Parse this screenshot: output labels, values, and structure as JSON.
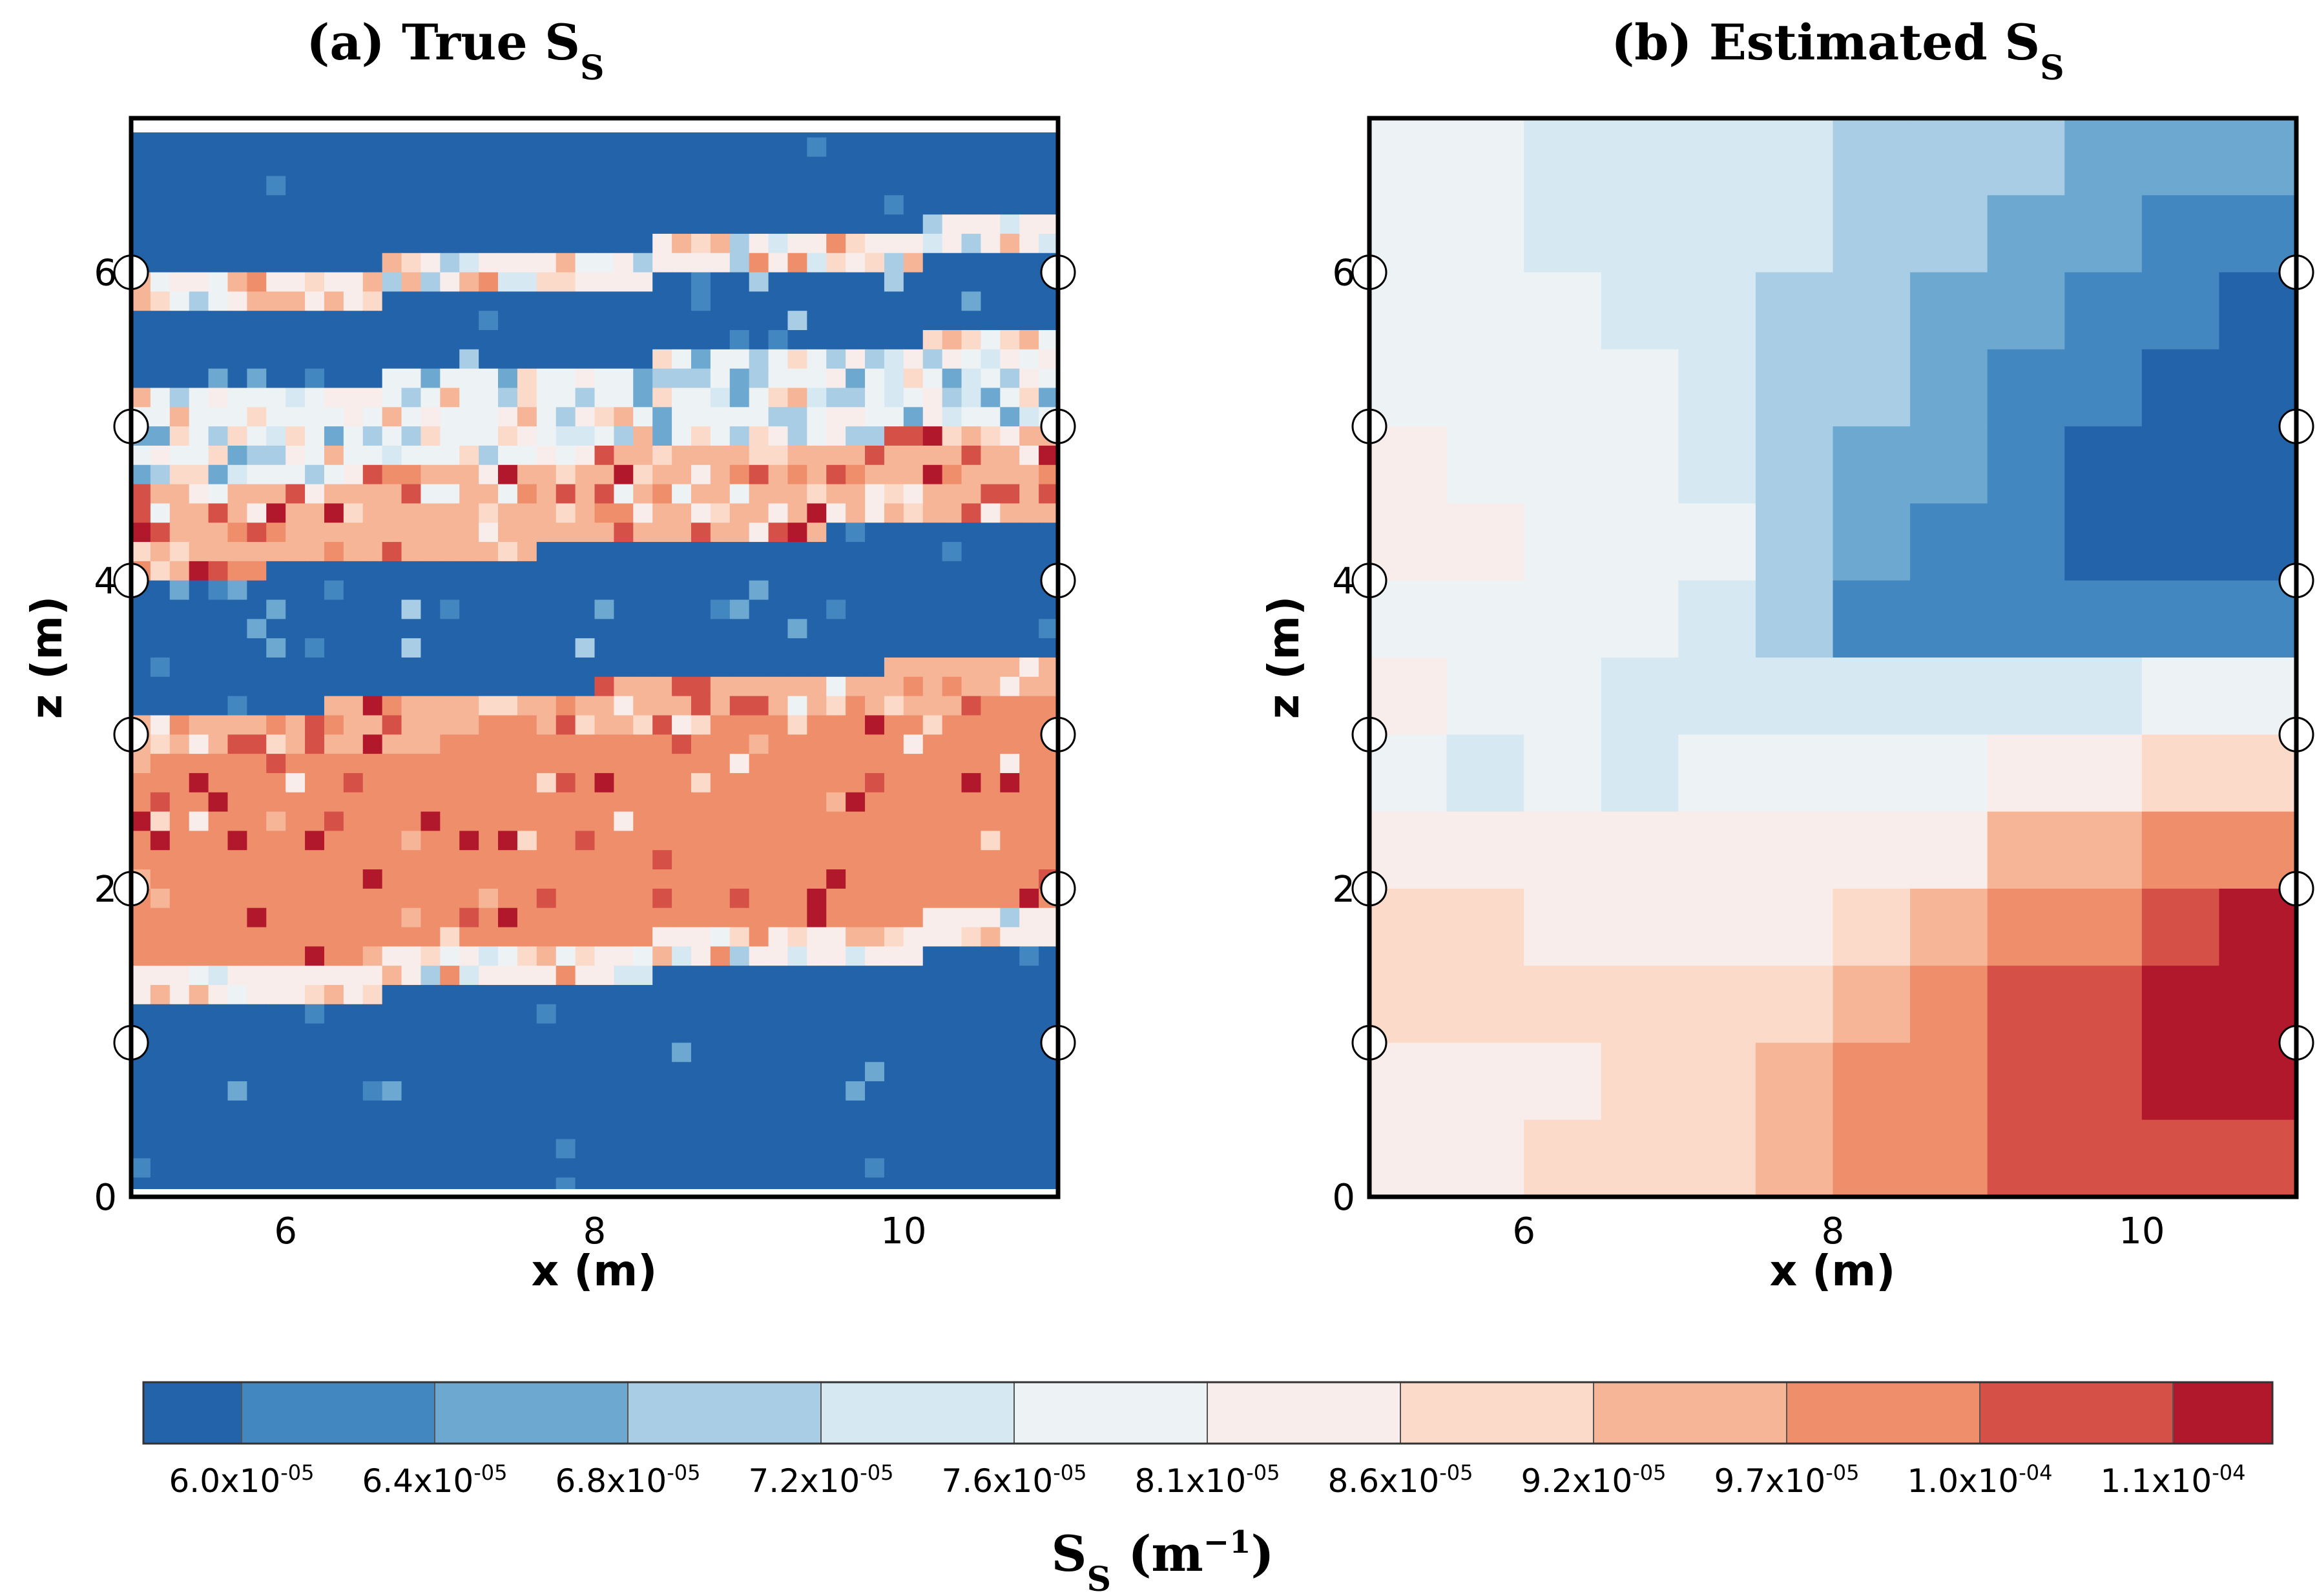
{
  "chart_data": {
    "type": "heatmap",
    "panels": [
      {
        "id": "a",
        "title_main": "(a) True S",
        "title_sub": "S",
        "xlabel": "x (m)",
        "ylabel": "z (m)",
        "xlim": [
          5,
          11
        ],
        "ylim": [
          0,
          7
        ],
        "xticks": [
          6,
          8,
          10
        ],
        "yticks": [
          0,
          2,
          4,
          6
        ],
        "well_markers_z": [
          1,
          2,
          3,
          4,
          5,
          6
        ],
        "grid_nx": 48,
        "grid_nz": 56,
        "layers": [
          {
            "z": [
              0.0,
              1.2
            ],
            "class": 0,
            "noise": 0.04
          },
          {
            "z": [
              1.2,
              1.45
            ],
            "class": 6,
            "noise": 0.6
          },
          {
            "z": [
              1.45,
              2.8
            ],
            "class": 9,
            "noise": 0.12
          },
          {
            "z": [
              2.8,
              3.1
            ],
            "class": 8,
            "noise": 0.5
          },
          {
            "z": [
              3.1,
              4.0
            ],
            "class": 0,
            "noise": 0.15
          },
          {
            "z": [
              4.0,
              4.6
            ],
            "class": 8,
            "noise": 0.55
          },
          {
            "z": [
              4.6,
              5.2
            ],
            "class": 5,
            "noise": 0.7
          },
          {
            "z": [
              5.2,
              5.7
            ],
            "class": 0,
            "noise": 0.12
          },
          {
            "z": [
              5.7,
              5.95
            ],
            "class": 6,
            "noise": 0.6
          },
          {
            "z": [
              5.95,
              7.0
            ],
            "class": 0,
            "noise": 0.03
          }
        ]
      },
      {
        "id": "b",
        "title_main": "(b) Estimated S",
        "title_sub": "S",
        "xlabel": "x (m)",
        "ylabel": "z (m)",
        "xlim": [
          5,
          11
        ],
        "ylim": [
          0,
          7
        ],
        "xticks": [
          6,
          8,
          10
        ],
        "yticks": [
          0,
          2,
          4,
          6
        ],
        "well_markers_z": [
          1,
          2,
          3,
          4,
          5,
          6
        ],
        "grid_nx": 12,
        "grid_nz": 14,
        "cells_top_to_bottom": [
          [
            5,
            5,
            4,
            4,
            4,
            4,
            3,
            3,
            3,
            2,
            2,
            2
          ],
          [
            5,
            5,
            4,
            4,
            4,
            4,
            3,
            3,
            2,
            2,
            1,
            1
          ],
          [
            5,
            5,
            5,
            4,
            4,
            3,
            3,
            2,
            2,
            1,
            1,
            0
          ],
          [
            5,
            5,
            5,
            5,
            4,
            3,
            3,
            2,
            1,
            1,
            0,
            0
          ],
          [
            6,
            5,
            5,
            5,
            4,
            3,
            2,
            2,
            1,
            0,
            0,
            0
          ],
          [
            6,
            6,
            5,
            5,
            5,
            3,
            2,
            1,
            1,
            0,
            0,
            0
          ],
          [
            5,
            5,
            5,
            5,
            4,
            3,
            1,
            1,
            1,
            1,
            1,
            1
          ],
          [
            6,
            5,
            5,
            4,
            4,
            4,
            4,
            4,
            4,
            4,
            5,
            5
          ],
          [
            5,
            4,
            5,
            4,
            5,
            5,
            5,
            5,
            6,
            6,
            7,
            7
          ],
          [
            6,
            6,
            6,
            6,
            6,
            6,
            6,
            6,
            8,
            8,
            9,
            9
          ],
          [
            7,
            7,
            6,
            6,
            6,
            6,
            7,
            8,
            9,
            9,
            10,
            11
          ],
          [
            7,
            7,
            7,
            7,
            7,
            7,
            8,
            9,
            10,
            10,
            11,
            11
          ],
          [
            6,
            6,
            6,
            7,
            7,
            8,
            9,
            9,
            10,
            10,
            11,
            11
          ],
          [
            6,
            6,
            7,
            7,
            7,
            8,
            9,
            9,
            10,
            10,
            10,
            10
          ]
        ]
      }
    ],
    "colorbar": {
      "colors": [
        "#2363aa",
        "#4287c0",
        "#6ca8d0",
        "#a9cde4",
        "#d6e8f2",
        "#edf2f5",
        "#f8edea",
        "#fcdac9",
        "#f6b597",
        "#ee8e6b",
        "#d55147",
        "#b2182b"
      ],
      "tick_labels": [
        {
          "mant": "6.0x10",
          "exp": "-05"
        },
        {
          "mant": "6.4x10",
          "exp": "-05"
        },
        {
          "mant": "6.8x10",
          "exp": "-05"
        },
        {
          "mant": "7.2x10",
          "exp": "-05"
        },
        {
          "mant": "7.6x10",
          "exp": "-05"
        },
        {
          "mant": "8.1x10",
          "exp": "-05"
        },
        {
          "mant": "8.6x10",
          "exp": "-05"
        },
        {
          "mant": "9.2x10",
          "exp": "-05"
        },
        {
          "mant": "9.7x10",
          "exp": "-05"
        },
        {
          "mant": "1.0x10",
          "exp": "-04"
        },
        {
          "mant": "1.1x10",
          "exp": "-04"
        }
      ],
      "label_main": "S",
      "label_sub": "S",
      "label_unit": " (m",
      "label_exp": "−1",
      "label_close": ")"
    }
  }
}
